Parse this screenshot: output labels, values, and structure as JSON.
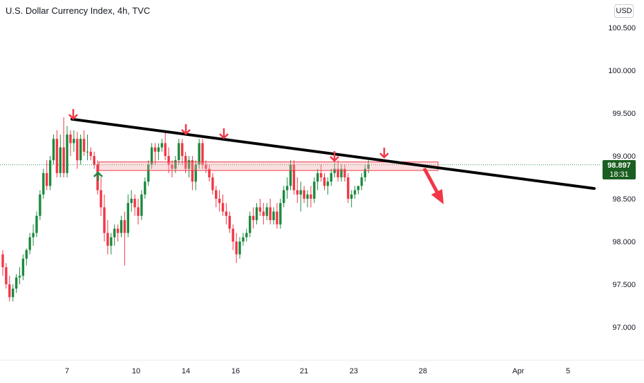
{
  "header": {
    "title": "U.S. Dollar Currency Index, 4h, TVC",
    "currency": "USD"
  },
  "price_tag": {
    "value": "98.897",
    "countdown": "18:31",
    "color": "#1b5e20"
  },
  "colors": {
    "up": "#1b8a3e",
    "down": "#f23645",
    "trendline": "#000000",
    "zone_fill": "#f5a3a8",
    "zone_border": "#e53945",
    "arrow_down": "#f23645",
    "arrow_up": "#1b8a3e"
  },
  "chart_data": {
    "type": "candlestick",
    "title": "U.S. Dollar Currency Index, 4h, TVC",
    "y_ticks": [
      "100.500",
      "100.000",
      "99.500",
      "99.000",
      "98.500",
      "98.000",
      "97.500",
      "97.000"
    ],
    "x_ticks": [
      "7",
      "10",
      "14",
      "16",
      "21",
      "23",
      "28",
      "Apr",
      "5"
    ],
    "ylim": [
      96.7,
      100.7
    ],
    "current_price": 98.897,
    "ohlc": [
      [
        97.85,
        97.9,
        97.6,
        97.7
      ],
      [
        97.7,
        97.75,
        97.45,
        97.5
      ],
      [
        97.5,
        97.6,
        97.3,
        97.35
      ],
      [
        97.35,
        97.5,
        97.3,
        97.45
      ],
      [
        97.45,
        97.62,
        97.4,
        97.58
      ],
      [
        97.58,
        97.7,
        97.5,
        97.6
      ],
      [
        97.6,
        97.85,
        97.55,
        97.8
      ],
      [
        97.8,
        97.92,
        97.72,
        97.9
      ],
      [
        97.9,
        98.1,
        97.85,
        98.05
      ],
      [
        98.05,
        98.2,
        97.95,
        98.1
      ],
      [
        98.1,
        98.35,
        98.05,
        98.3
      ],
      [
        98.3,
        98.6,
        98.25,
        98.55
      ],
      [
        98.55,
        98.85,
        98.5,
        98.8
      ],
      [
        98.8,
        98.95,
        98.6,
        98.65
      ],
      [
        98.65,
        99.0,
        98.6,
        98.95
      ],
      [
        98.95,
        99.25,
        98.9,
        99.2
      ],
      [
        99.2,
        99.3,
        98.75,
        98.8
      ],
      [
        98.8,
        99.25,
        98.75,
        99.1
      ],
      [
        99.1,
        99.45,
        98.75,
        98.8
      ],
      [
        98.8,
        99.35,
        98.75,
        99.25
      ],
      [
        99.25,
        99.3,
        99.0,
        99.15
      ],
      [
        99.15,
        99.3,
        99.05,
        99.2
      ],
      [
        99.2,
        99.28,
        98.85,
        98.95
      ],
      [
        98.95,
        99.25,
        98.9,
        99.2
      ],
      [
        99.2,
        99.3,
        99.0,
        99.05
      ],
      [
        99.05,
        99.25,
        98.95,
        99.05
      ],
      [
        99.05,
        99.1,
        98.95,
        99.0
      ],
      [
        99.0,
        99.05,
        98.85,
        98.9
      ],
      [
        98.9,
        98.95,
        98.55,
        98.6
      ],
      [
        98.6,
        98.75,
        98.3,
        98.4
      ],
      [
        98.4,
        98.55,
        98.0,
        98.1
      ],
      [
        98.1,
        98.25,
        97.85,
        97.95
      ],
      [
        97.95,
        98.1,
        97.85,
        98.05
      ],
      [
        98.05,
        98.2,
        97.95,
        98.15
      ],
      [
        98.15,
        98.2,
        98.0,
        98.1
      ],
      [
        98.1,
        98.3,
        98.05,
        98.25
      ],
      [
        98.25,
        98.35,
        97.72,
        98.1
      ],
      [
        98.1,
        98.55,
        98.05,
        98.45
      ],
      [
        98.45,
        98.6,
        98.35,
        98.5
      ],
      [
        98.5,
        98.55,
        98.3,
        98.4
      ],
      [
        98.4,
        98.5,
        98.2,
        98.3
      ],
      [
        98.3,
        98.6,
        98.25,
        98.55
      ],
      [
        98.55,
        98.75,
        98.5,
        98.7
      ],
      [
        98.7,
        98.95,
        98.65,
        98.9
      ],
      [
        98.9,
        99.15,
        98.85,
        99.1
      ],
      [
        99.1,
        99.15,
        98.9,
        99.05
      ],
      [
        99.05,
        99.15,
        98.95,
        99.1
      ],
      [
        99.1,
        99.2,
        99.05,
        99.15
      ],
      [
        99.15,
        99.28,
        98.95,
        99.0
      ],
      [
        99.0,
        99.1,
        98.8,
        98.9
      ],
      [
        98.9,
        98.95,
        98.75,
        98.85
      ],
      [
        98.85,
        99.0,
        98.8,
        98.95
      ],
      [
        98.95,
        99.2,
        98.9,
        99.15
      ],
      [
        99.15,
        99.2,
        98.9,
        99.0
      ],
      [
        99.0,
        99.05,
        98.8,
        98.85
      ],
      [
        98.85,
        99.0,
        98.75,
        98.95
      ],
      [
        98.95,
        99.0,
        98.6,
        98.7
      ],
      [
        98.7,
        98.95,
        98.6,
        98.9
      ],
      [
        98.9,
        99.2,
        98.85,
        99.15
      ],
      [
        99.15,
        99.2,
        98.85,
        98.9
      ],
      [
        98.9,
        98.95,
        98.8,
        98.85
      ],
      [
        98.85,
        98.9,
        98.7,
        98.75
      ],
      [
        98.75,
        98.8,
        98.55,
        98.6
      ],
      [
        98.6,
        98.65,
        98.4,
        98.5
      ],
      [
        98.5,
        98.6,
        98.35,
        98.45
      ],
      [
        98.45,
        98.55,
        98.3,
        98.35
      ],
      [
        98.35,
        98.45,
        98.2,
        98.3
      ],
      [
        98.3,
        98.35,
        98.1,
        98.15
      ],
      [
        98.15,
        98.2,
        97.9,
        98.0
      ],
      [
        98.0,
        98.1,
        97.75,
        97.85
      ],
      [
        97.85,
        98.05,
        97.8,
        98.0
      ],
      [
        98.0,
        98.1,
        97.95,
        98.05
      ],
      [
        98.05,
        98.15,
        98.0,
        98.1
      ],
      [
        98.1,
        98.35,
        98.05,
        98.3
      ],
      [
        98.3,
        98.4,
        98.15,
        98.25
      ],
      [
        98.25,
        98.45,
        98.2,
        98.4
      ],
      [
        98.4,
        98.5,
        98.3,
        98.35
      ],
      [
        98.35,
        98.45,
        98.2,
        98.3
      ],
      [
        98.3,
        98.45,
        98.25,
        98.4
      ],
      [
        98.4,
        98.5,
        98.2,
        98.25
      ],
      [
        98.25,
        98.4,
        98.2,
        98.35
      ],
      [
        98.35,
        98.45,
        98.15,
        98.2
      ],
      [
        98.2,
        98.5,
        98.15,
        98.45
      ],
      [
        98.45,
        98.65,
        98.4,
        98.6
      ],
      [
        98.6,
        98.75,
        98.5,
        98.65
      ],
      [
        98.65,
        98.95,
        98.6,
        98.9
      ],
      [
        98.9,
        98.95,
        98.55,
        98.6
      ],
      [
        98.6,
        98.75,
        98.45,
        98.55
      ],
      [
        98.55,
        98.7,
        98.35,
        98.6
      ],
      [
        98.6,
        98.65,
        98.45,
        98.5
      ],
      [
        98.5,
        98.6,
        98.4,
        98.55
      ],
      [
        98.55,
        98.65,
        98.4,
        98.5
      ],
      [
        98.5,
        98.75,
        98.45,
        98.7
      ],
      [
        98.7,
        98.85,
        98.6,
        98.8
      ],
      [
        98.8,
        98.9,
        98.7,
        98.75
      ],
      [
        98.75,
        98.8,
        98.6,
        98.65
      ],
      [
        98.65,
        98.75,
        98.55,
        98.7
      ],
      [
        98.7,
        98.85,
        98.65,
        98.8
      ],
      [
        98.8,
        98.92,
        98.75,
        98.85
      ],
      [
        98.85,
        98.95,
        98.7,
        98.75
      ],
      [
        98.75,
        98.9,
        98.7,
        98.85
      ],
      [
        98.85,
        98.9,
        98.7,
        98.75
      ],
      [
        98.75,
        98.8,
        98.45,
        98.5
      ],
      [
        98.5,
        98.6,
        98.4,
        98.55
      ],
      [
        98.55,
        98.65,
        98.5,
        98.6
      ],
      [
        98.6,
        98.65,
        98.55,
        98.65
      ],
      [
        98.65,
        98.8,
        98.6,
        98.75
      ],
      [
        98.75,
        98.9,
        98.7,
        98.85
      ],
      [
        98.85,
        98.95,
        98.8,
        98.9
      ]
    ],
    "trendline": {
      "start": {
        "index": 15,
        "value": 99.43
      },
      "end": {
        "index": 125,
        "value": 98.62
      }
    },
    "resistance_zone": {
      "top": 98.93,
      "bottom": 98.83
    },
    "resistance_arrows": [
      15,
      38,
      47,
      70,
      81
    ]
  }
}
